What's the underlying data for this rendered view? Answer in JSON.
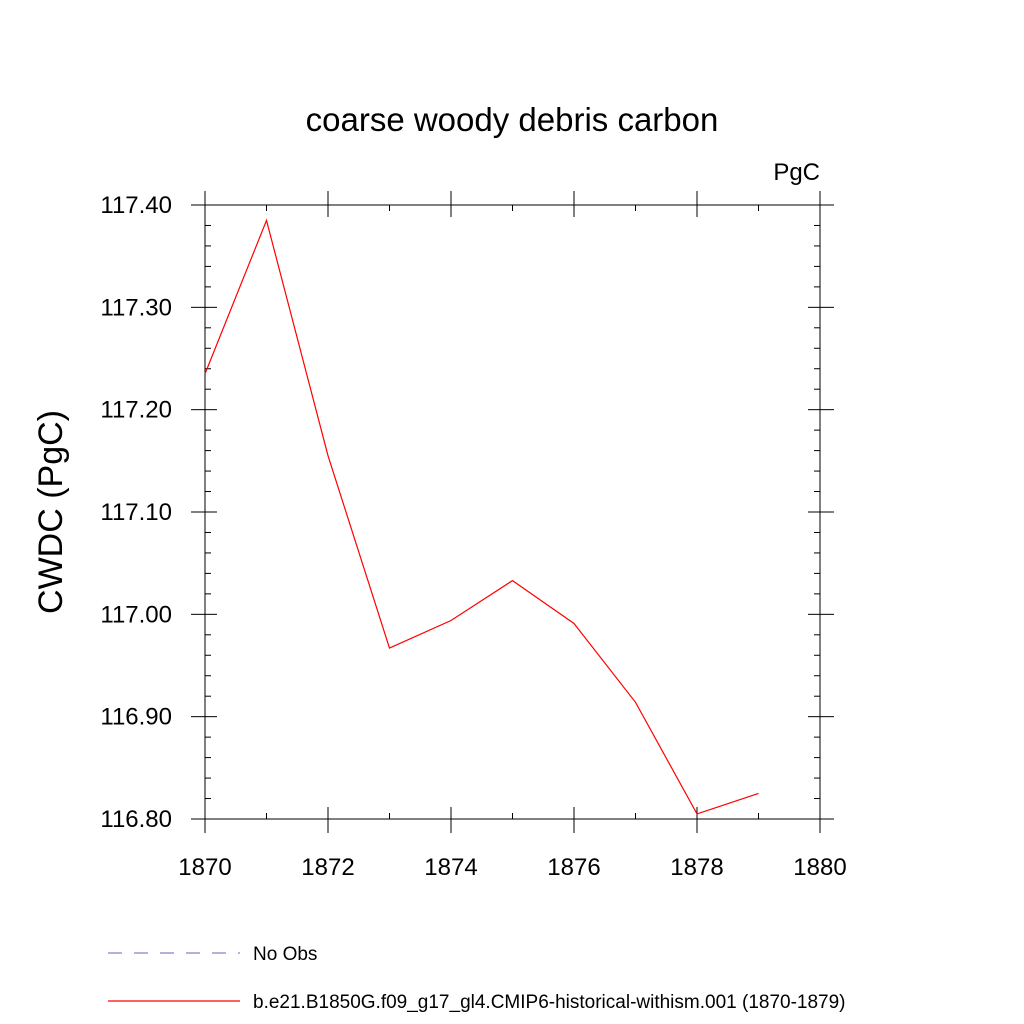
{
  "chart_data": {
    "type": "line",
    "title": "coarse woody debris carbon",
    "units_label": "PgC",
    "xlabel": "",
    "ylabel": "CWDC  (PgC)",
    "xlim": [
      1870,
      1880
    ],
    "ylim": [
      116.8,
      117.4
    ],
    "x_ticks": [
      "1870",
      "1872",
      "1874",
      "1876",
      "1878",
      "1880"
    ],
    "y_ticks": [
      "116.80",
      "116.90",
      "117.00",
      "117.10",
      "117.20",
      "117.30",
      "117.40"
    ],
    "grid": false,
    "legend_position": "bottom",
    "series": [
      {
        "name": "b.e21.B1850G.f09_g17_gl4.CMIP6-historical-withism.001 (1870-1879)",
        "color": "#ff0000",
        "style": "solid",
        "x": [
          1870,
          1871,
          1872,
          1873,
          1874,
          1875,
          1876,
          1877,
          1878,
          1879
        ],
        "y": [
          117.235,
          117.385,
          117.155,
          116.967,
          116.994,
          117.033,
          116.991,
          116.914,
          116.805,
          116.825
        ]
      }
    ],
    "legend": [
      {
        "label": "No Obs",
        "color": "#8a7fc8",
        "style": "dashed"
      },
      {
        "label": "b.e21.B1850G.f09_g17_gl4.CMIP6-historical-withism.001 (1870-1879)",
        "color": "#ff0000",
        "style": "solid"
      }
    ]
  }
}
